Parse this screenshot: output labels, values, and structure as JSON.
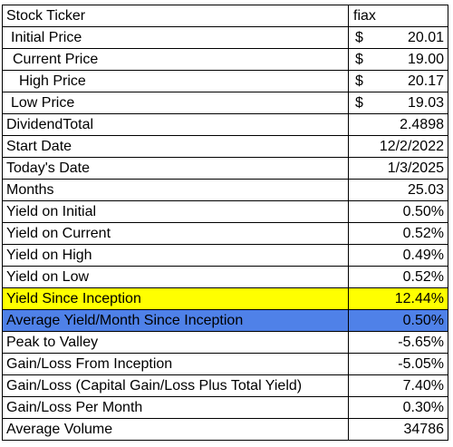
{
  "colors": {
    "highlight_yellow": "#ffff00",
    "highlight_blue": "#4f81e8"
  },
  "rows": [
    {
      "label": "Stock Ticker",
      "value": "fiax"
    },
    {
      "label": "Initial Price",
      "currency": "$",
      "value": "20.01"
    },
    {
      "label": "Current Price",
      "currency": "$",
      "value": "19.00"
    },
    {
      "label": "High Price",
      "currency": "$",
      "value": "20.17"
    },
    {
      "label": "Low Price",
      "currency": "$",
      "value": "19.03"
    },
    {
      "label": "DividendTotal",
      "value": "2.4898"
    },
    {
      "label": "Start Date",
      "value": "12/2/2022"
    },
    {
      "label": "Today's Date",
      "value": "1/3/2025"
    },
    {
      "label": "Months",
      "value": "25.03"
    },
    {
      "label": "Yield on Initial",
      "value": "0.50%"
    },
    {
      "label": "Yield on Current",
      "value": "0.52%"
    },
    {
      "label": "Yield on High",
      "value": "0.49%"
    },
    {
      "label": "Yield on Low",
      "value": "0.52%"
    },
    {
      "label": "Yield Since Inception",
      "value": "12.44%"
    },
    {
      "label": "Average Yield/Month Since Inception",
      "value": "0.50%"
    },
    {
      "label": "Peak to Valley",
      "value": "-5.65%"
    },
    {
      "label": "Gain/Loss From Inception",
      "value": "-5.05%"
    },
    {
      "label": "Gain/Loss (Capital Gain/Loss Plus Total Yield)",
      "value": "7.40%"
    },
    {
      "label": "Gain/Loss Per Month",
      "value": "0.30%"
    },
    {
      "label": "Average Volume",
      "value": "34786"
    }
  ]
}
